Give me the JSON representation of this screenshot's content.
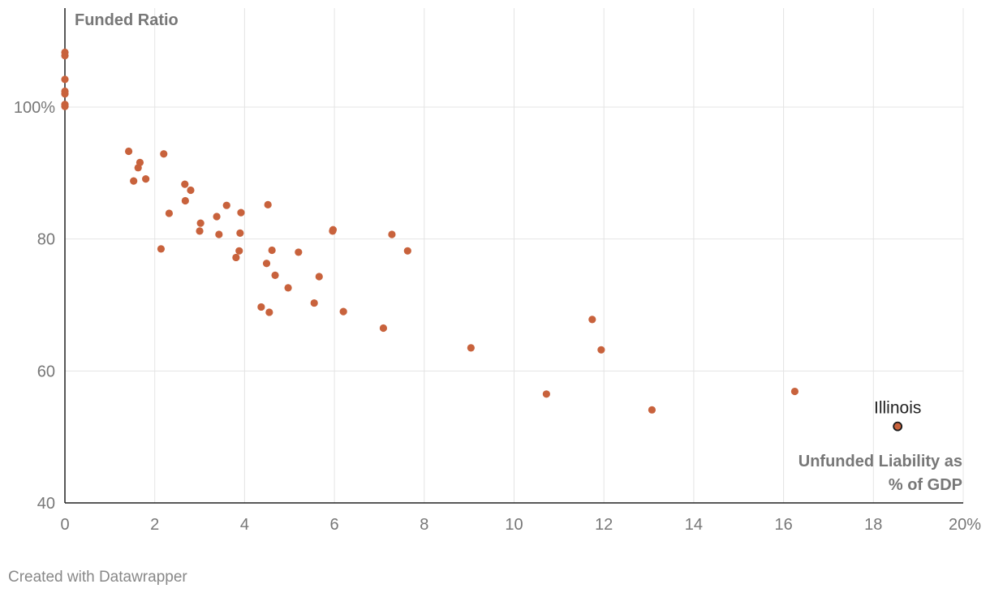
{
  "chart_data": {
    "type": "scatter",
    "ylabel": "Funded Ratio",
    "xlabel_lines": [
      "Unfunded Liability as",
      "% of GDP"
    ],
    "xlim": [
      0,
      20
    ],
    "ylim": [
      40,
      115
    ],
    "x_ticks": [
      0,
      2,
      4,
      6,
      8,
      10,
      12,
      14,
      16,
      18,
      20
    ],
    "x_tick_labels": [
      "0",
      "2",
      "4",
      "6",
      "8",
      "10",
      "12",
      "14",
      "16",
      "18",
      "20%"
    ],
    "y_ticks": [
      40,
      60,
      80,
      100
    ],
    "y_tick_labels": [
      "40",
      "60",
      "80",
      "100%"
    ],
    "grid": true,
    "point_color": "#c8623c",
    "highlight_stroke": "#1a1a1a",
    "points": [
      {
        "x": 0.0,
        "y": 108.3
      },
      {
        "x": 0.0,
        "y": 107.8
      },
      {
        "x": 0.0,
        "y": 104.2
      },
      {
        "x": 0.0,
        "y": 102.4
      },
      {
        "x": 0.0,
        "y": 102.0
      },
      {
        "x": 0.0,
        "y": 100.4
      },
      {
        "x": 0.0,
        "y": 100.1
      },
      {
        "x": 1.42,
        "y": 93.3
      },
      {
        "x": 1.67,
        "y": 91.6
      },
      {
        "x": 1.63,
        "y": 90.8
      },
      {
        "x": 1.8,
        "y": 89.1
      },
      {
        "x": 1.53,
        "y": 88.8
      },
      {
        "x": 2.2,
        "y": 92.9
      },
      {
        "x": 2.67,
        "y": 88.3
      },
      {
        "x": 2.8,
        "y": 87.4
      },
      {
        "x": 2.68,
        "y": 85.8
      },
      {
        "x": 2.32,
        "y": 83.9
      },
      {
        "x": 2.14,
        "y": 78.5
      },
      {
        "x": 3.02,
        "y": 82.4
      },
      {
        "x": 3.0,
        "y": 81.2
      },
      {
        "x": 3.38,
        "y": 83.4
      },
      {
        "x": 3.43,
        "y": 80.7
      },
      {
        "x": 3.6,
        "y": 85.1
      },
      {
        "x": 3.92,
        "y": 84.0
      },
      {
        "x": 3.9,
        "y": 80.9
      },
      {
        "x": 3.88,
        "y": 78.2
      },
      {
        "x": 3.81,
        "y": 77.2
      },
      {
        "x": 4.52,
        "y": 85.2
      },
      {
        "x": 4.61,
        "y": 78.3
      },
      {
        "x": 4.49,
        "y": 76.3
      },
      {
        "x": 4.68,
        "y": 74.5
      },
      {
        "x": 4.97,
        "y": 72.6
      },
      {
        "x": 4.37,
        "y": 69.7
      },
      {
        "x": 4.55,
        "y": 68.9
      },
      {
        "x": 5.2,
        "y": 78.0
      },
      {
        "x": 5.66,
        "y": 74.3
      },
      {
        "x": 5.55,
        "y": 70.3
      },
      {
        "x": 5.96,
        "y": 81.2
      },
      {
        "x": 5.97,
        "y": 81.4
      },
      {
        "x": 6.2,
        "y": 69.0
      },
      {
        "x": 7.28,
        "y": 80.7
      },
      {
        "x": 7.63,
        "y": 78.2
      },
      {
        "x": 7.09,
        "y": 66.5
      },
      {
        "x": 9.04,
        "y": 63.5
      },
      {
        "x": 10.72,
        "y": 56.5
      },
      {
        "x": 11.74,
        "y": 67.8
      },
      {
        "x": 11.94,
        "y": 63.2
      },
      {
        "x": 13.07,
        "y": 54.1
      },
      {
        "x": 16.25,
        "y": 56.9
      },
      {
        "x": 18.54,
        "y": 51.6,
        "label": "Illinois",
        "highlight": true
      }
    ]
  },
  "footer": {
    "credit": "Created with Datawrapper"
  }
}
